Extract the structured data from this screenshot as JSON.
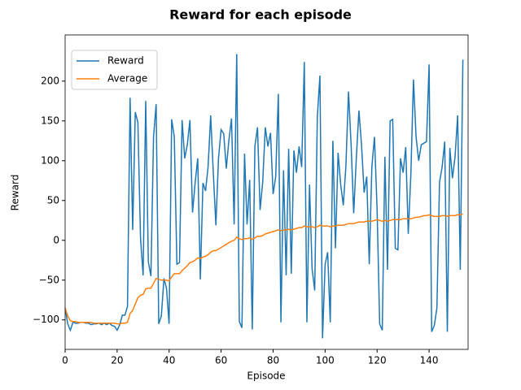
{
  "chart_data": {
    "type": "line",
    "title": "Reward for each episode",
    "xlabel": "Episode",
    "ylabel": "Reward",
    "x": [
      0,
      1,
      2,
      3,
      4,
      5,
      6,
      7,
      8,
      9,
      10,
      11,
      12,
      13,
      14,
      15,
      16,
      17,
      18,
      19,
      20,
      21,
      22,
      23,
      24,
      25,
      26,
      27,
      28,
      29,
      30,
      31,
      32,
      33,
      34,
      35,
      36,
      37,
      38,
      39,
      40,
      41,
      42,
      43,
      44,
      45,
      46,
      47,
      48,
      49,
      50,
      51,
      52,
      53,
      54,
      55,
      56,
      57,
      58,
      59,
      60,
      61,
      62,
      63,
      64,
      65,
      66,
      67,
      68,
      69,
      70,
      71,
      72,
      73,
      74,
      75,
      76,
      77,
      78,
      79,
      80,
      81,
      82,
      83,
      84,
      85,
      86,
      87,
      88,
      89,
      90,
      91,
      92,
      93,
      94,
      95,
      96,
      97,
      98,
      99,
      100,
      101,
      102,
      103,
      104,
      105,
      106,
      107,
      108,
      109,
      110,
      111,
      112,
      113,
      114,
      115,
      116,
      117,
      118,
      119,
      120,
      121,
      122,
      123,
      124,
      125,
      126,
      127,
      128,
      129,
      130,
      131,
      132,
      133,
      134,
      135,
      136,
      137,
      138,
      139,
      140,
      141,
      142,
      143,
      144,
      145,
      146,
      147,
      148,
      149,
      150,
      151,
      152,
      153
    ],
    "series": [
      {
        "name": "Reward",
        "color": "#1f77b4",
        "values": [
          -85,
          -105,
          -113,
          -103,
          -104,
          -104,
          -103,
          -103,
          -104,
          -104,
          -106,
          -105,
          -105,
          -104,
          -106,
          -104,
          -106,
          -104,
          -107,
          -108,
          -113,
          -106,
          -94,
          -94,
          -83,
          179,
          13,
          161,
          148,
          3,
          -44,
          175,
          -27,
          -45,
          130,
          171,
          -105,
          -95,
          -48,
          -60,
          -105,
          152,
          130,
          -30,
          -28,
          151,
          103,
          120,
          151,
          35,
          72,
          103,
          -49,
          72,
          62,
          92,
          157,
          85,
          19,
          103,
          139,
          134,
          90,
          126,
          153,
          20,
          234,
          -102,
          -110,
          109,
          20,
          76,
          -112,
          118,
          142,
          38,
          73,
          142,
          118,
          135,
          58,
          80,
          184,
          -103,
          88,
          -44,
          115,
          -42,
          113,
          85,
          118,
          92,
          224,
          -103,
          70,
          -36,
          -63,
          155,
          207,
          -123,
          -30,
          -15,
          -103,
          125,
          -10,
          110,
          70,
          44,
          93,
          187,
          120,
          34,
          103,
          163,
          120,
          60,
          80,
          -30,
          92,
          130,
          40,
          -105,
          -113,
          105,
          -37,
          150,
          152,
          -10,
          -12,
          103,
          85,
          117,
          8,
          83,
          202,
          130,
          100,
          120,
          122,
          124,
          221,
          -115,
          -107,
          -85,
          73,
          92,
          124,
          -115,
          116,
          78,
          105,
          157,
          -37,
          227
        ]
      },
      {
        "name": "Average",
        "color": "#ff7f0e",
        "values": [
          -85,
          -95,
          -101,
          -102,
          -102,
          -103,
          -103,
          -103,
          -103,
          -103,
          -103,
          -104,
          -104,
          -104,
          -104,
          -104,
          -104,
          -104,
          -104,
          -104,
          -105,
          -105,
          -104,
          -104,
          -103,
          -92,
          -88,
          -80,
          -72,
          -69,
          -68,
          -61,
          -60,
          -60,
          -54,
          -48,
          -49,
          -50,
          -50,
          -50,
          -51,
          -46,
          -42,
          -42,
          -42,
          -38,
          -35,
          -32,
          -28,
          -27,
          -25,
          -22,
          -23,
          -21,
          -20,
          -18,
          -15,
          -13,
          -13,
          -11,
          -9,
          -7,
          -5,
          -3,
          -1,
          0,
          4,
          2,
          1,
          2,
          2,
          3,
          1,
          3,
          5,
          5,
          6,
          8,
          9,
          10,
          11,
          12,
          13,
          12,
          13,
          13,
          14,
          13,
          14,
          15,
          16,
          16,
          18,
          17,
          17,
          17,
          16,
          17,
          19,
          18,
          18,
          18,
          17,
          18,
          18,
          19,
          19,
          19,
          20,
          21,
          21,
          21,
          22,
          23,
          23,
          23,
          24,
          24,
          24,
          25,
          26,
          25,
          24,
          25,
          24,
          25,
          26,
          26,
          26,
          26,
          27,
          27,
          27,
          27,
          28,
          29,
          29,
          30,
          31,
          31,
          32,
          31,
          30,
          30,
          30,
          31,
          31,
          30,
          31,
          31,
          31,
          32,
          32,
          33
        ]
      }
    ],
    "xlim": [
      0,
      155
    ],
    "ylim": [
      -137,
      258
    ],
    "xticks": [
      0,
      20,
      40,
      60,
      80,
      100,
      120,
      140
    ],
    "yticks": [
      {
        "value": -100,
        "label": "−100"
      },
      {
        "value": -50,
        "label": "−50"
      },
      0,
      50,
      100,
      150,
      200
    ],
    "legend": "upper left"
  }
}
